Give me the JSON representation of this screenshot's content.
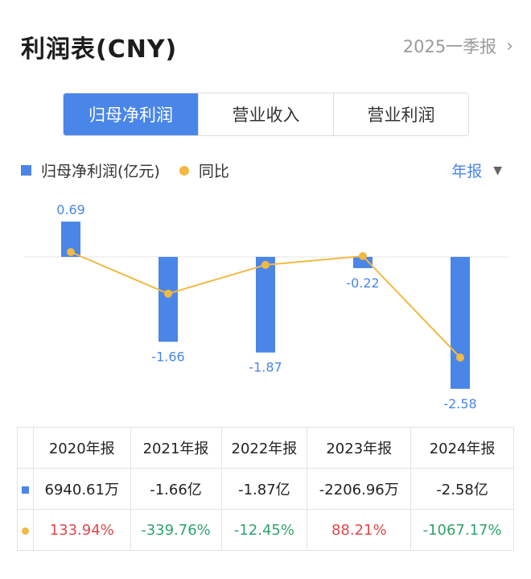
{
  "header": {
    "title": "利润表(CNY)",
    "period_link": "2025一季报",
    "chevron_icon": "chevron-right-icon"
  },
  "tabs": [
    {
      "label": "归母净利润",
      "active": true
    },
    {
      "label": "营业收入",
      "active": false
    },
    {
      "label": "营业利润",
      "active": false
    }
  ],
  "legend": {
    "bar_label": "归母净利润(亿元)",
    "line_label": "同比"
  },
  "period_select": {
    "label": "年报",
    "caret_icon": "caret-down-icon"
  },
  "colors": {
    "bar": "#4a86e8",
    "line": "#f2b942",
    "positive": "#e04848",
    "negative": "#2fa36b"
  },
  "chart_data": {
    "type": "bar",
    "categories": [
      "2020年报",
      "2021年报",
      "2022年报",
      "2023年报",
      "2024年报"
    ],
    "series": [
      {
        "name": "归母净利润(亿元)",
        "type": "bar",
        "values": [
          0.69,
          -1.66,
          -1.87,
          -0.22,
          -2.58
        ],
        "data_labels": [
          "0.69",
          "-1.66",
          "-1.87",
          "-0.22",
          "-2.58"
        ]
      },
      {
        "name": "同比",
        "type": "line",
        "values": [
          133.94,
          -339.76,
          -12.45,
          88.21,
          -1067.17
        ]
      }
    ],
    "ylim": [
      -2.58,
      0.69
    ],
    "legend_position": "top-left"
  },
  "table": {
    "headers": [
      "2020年报",
      "2021年报",
      "2022年报",
      "2023年报",
      "2024年报"
    ],
    "rows": [
      {
        "marker": "bar-square-icon",
        "cells": [
          "6940.61万",
          "-1.66亿",
          "-1.87亿",
          "-2206.96万",
          "-2.58亿"
        ]
      },
      {
        "marker": "line-dot-icon",
        "cells": [
          "133.94%",
          "-339.76%",
          "-12.45%",
          "88.21%",
          "-1067.17%"
        ]
      }
    ]
  }
}
